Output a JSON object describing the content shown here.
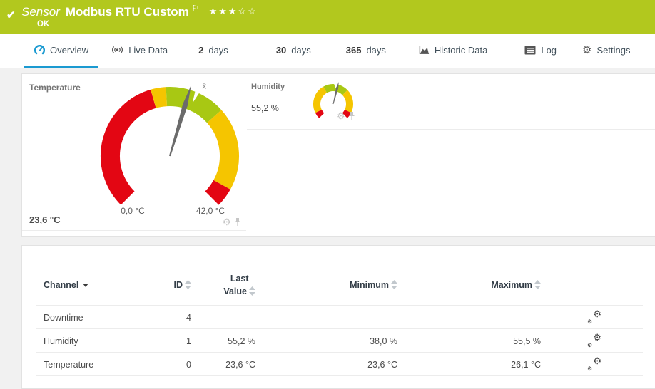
{
  "colors": {
    "topbar_green": "#b2c81e",
    "accent_blue": "#1b9ad1",
    "gauge_red": "#e30613",
    "gauge_yellow": "#f5c500",
    "gauge_green": "#a8c813"
  },
  "header": {
    "check": "✔",
    "kind": "Sensor",
    "title": "Modbus RTU Custom",
    "flag": "⚐",
    "stars_filled": "★★★",
    "stars_empty": "☆☆",
    "status": "OK"
  },
  "tabs": {
    "overview": "Overview",
    "live_data": "Live Data",
    "d2_num": "2",
    "d2_label": "days",
    "d30_num": "30",
    "d30_label": "days",
    "d365_num": "365",
    "d365_label": "days",
    "historic": "Historic Data",
    "log": "Log",
    "settings": "Settings",
    "settings_gear": "⚙"
  },
  "gauges": {
    "temperature": {
      "title": "Temperature",
      "value": 23.6,
      "value_label": "23,6 °C",
      "min": 0,
      "max": 42,
      "min_label": "0,0 °C",
      "max_label": "42,0 °C",
      "avg": 24.6,
      "avg_symbol": "x̄",
      "segments": [
        {
          "from": 0,
          "to": 18.5,
          "color": "#e30613"
        },
        {
          "from": 18.5,
          "to": 20.5,
          "color": "#f5c500"
        },
        {
          "from": 20.5,
          "to": 28.5,
          "color": "#a8c813"
        },
        {
          "from": 28.5,
          "to": 39.5,
          "color": "#f5c500"
        },
        {
          "from": 39.5,
          "to": 42,
          "color": "#e30613"
        }
      ]
    },
    "humidity": {
      "title": "Humidity",
      "value": 55.2,
      "value_label": "55,2 %",
      "min": 0,
      "max": 100,
      "avg": 53,
      "avg_symbol": "x̄",
      "segments": [
        {
          "from": 0,
          "to": 7,
          "color": "#e30613"
        },
        {
          "from": 7,
          "to": 39,
          "color": "#f5c500"
        },
        {
          "from": 39,
          "to": 67,
          "color": "#a8c813"
        },
        {
          "from": 67,
          "to": 93,
          "color": "#f5c500"
        },
        {
          "from": 93,
          "to": 100,
          "color": "#e30613"
        }
      ]
    },
    "tools_gear": "⚙"
  },
  "table": {
    "headers": {
      "channel": "Channel",
      "id": "ID",
      "last_1": "Last",
      "last_2": "Value",
      "minimum": "Minimum",
      "maximum": "Maximum"
    },
    "gear": "⚙",
    "rows": [
      {
        "channel": "Downtime",
        "id": "-4",
        "last": "",
        "min": "",
        "max": ""
      },
      {
        "channel": "Humidity",
        "id": "1",
        "last": "55,2 %",
        "min": "38,0 %",
        "max": "55,5 %"
      },
      {
        "channel": "Temperature",
        "id": "0",
        "last": "23,6 °C",
        "min": "23,6 °C",
        "max": "26,1 °C"
      }
    ]
  }
}
